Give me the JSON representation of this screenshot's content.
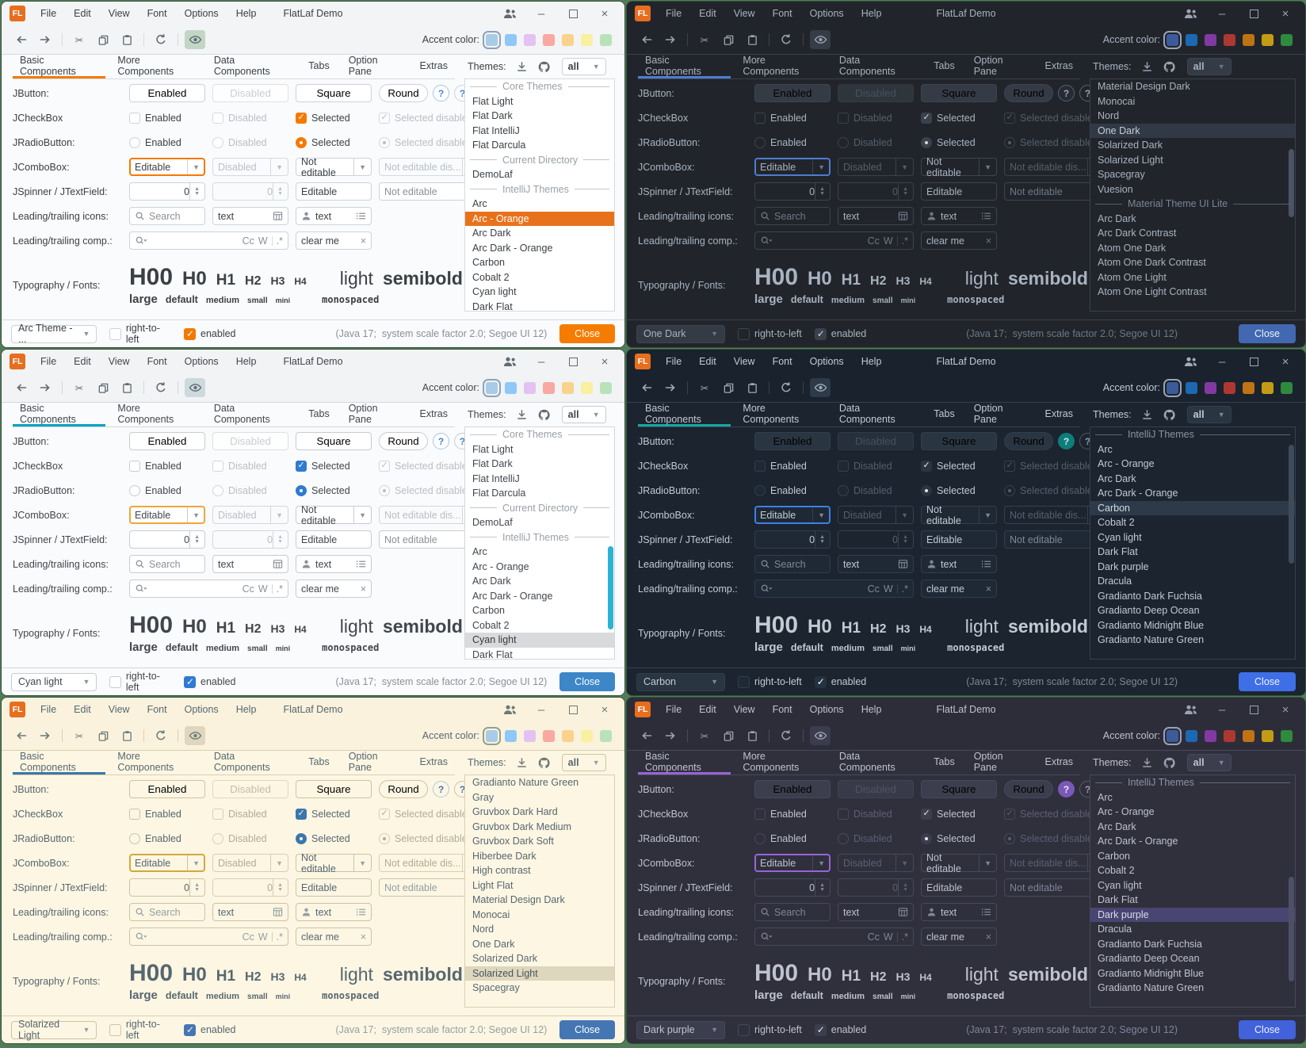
{
  "shared": {
    "logo": "FL",
    "window_title": "FlatLaf Demo",
    "menu": [
      "File",
      "Edit",
      "View",
      "Font",
      "Options",
      "Help"
    ],
    "accent_label": "Accent color:",
    "tabs": [
      "Basic Components",
      "More Components",
      "Data Components",
      "Tabs",
      "Option Pane",
      "Extras"
    ],
    "themes_label": "Themes:",
    "themes_filter": "all",
    "rows": {
      "jbutton_label": "JButton:",
      "btn_enabled": "Enabled",
      "btn_disabled": "Disabled",
      "btn_square": "Square",
      "btn_round": "Round",
      "help": "?",
      "jcheckbox_label": "JCheckBox",
      "cb_enabled": "Enabled",
      "cb_disabled": "Disabled",
      "cb_selected": "Selected",
      "cb_selected_disabled": "Selected disabled",
      "jradio_label": "JRadioButton:",
      "jcombo_label": "JComboBox:",
      "combo_editable": "Editable",
      "combo_disabled": "Disabled",
      "combo_not_editable": "Not editable",
      "combo_not_editable_dis": "Not editable dis...",
      "jspinner_label": "JSpinner / JTextField:",
      "spinner_value": "0",
      "tf_editable": "Editable",
      "tf_not_editable": "Not editable",
      "icons_label": "Leading/trailing icons:",
      "search_placeholder": "Search",
      "text_value": "text",
      "comp_label": "Leading/trailing comp.:",
      "match_case": "Cc",
      "whole_word": "W",
      "regex": ".*",
      "clear_value": "clear me",
      "clear_x": "×",
      "typo_label": "Typography / Fonts:",
      "h00": "H00",
      "h0": "H0",
      "h1": "H1",
      "h2": "H2",
      "h3": "H3",
      "h4": "H4",
      "light": "light",
      "semibold": "semibold",
      "size_large": "large",
      "size_default": "default",
      "size_medium": "medium",
      "size_small": "small",
      "size_mini": "mini",
      "monospaced": "monospaced"
    },
    "footer": {
      "rtl": "right-to-left",
      "enabled": "enabled",
      "info": "(Java 17;  system scale factor 2.0; Segoe UI 12)",
      "close": "Close"
    }
  },
  "panels": [
    {
      "footer_combo": "Arc Theme - ...",
      "colors": {
        "bg": "#fafbfc",
        "bar": "#f3f4f5",
        "text": "#3b4045",
        "muted": "#8a9199",
        "dis": "#b9bfc6",
        "bd": "#d5dadf",
        "fld": "#ffffff",
        "btn": "#ffffff",
        "btnb": "#ccd3da",
        "accent": "#f57900",
        "chk": "#f57900",
        "chkfg": "#ffffff",
        "focus": "#f57900",
        "lbg": "#ffffff",
        "sepc": "#9aa0a6",
        "selbg": "#e8721c",
        "selfg": "#ffffff",
        "clbg": "#f57c00",
        "clfg": "#ffffff",
        "fchk": "#f57900",
        "fchkfg": "#ffffff",
        "h1bg": "#ffffff",
        "h1fg": "#4a86d8",
        "h1b": "#a7c4e8",
        "h2fg": "#4a86d8",
        "h2b": "#ccd3da",
        "eye": "#c2d6c6",
        "sb": "transparent",
        "ring": "#8fa3b8",
        "icon": "#5f6a72"
      },
      "accents": [
        {
          "color": "#a8cbe8",
          "selected": true
        },
        {
          "color": "#8fc8f8"
        },
        {
          "color": "#e3c2f3"
        },
        {
          "color": "#f8a9a2"
        },
        {
          "color": "#f9d28d"
        },
        {
          "color": "#f9f0a0"
        },
        {
          "color": "#b9e2ba"
        }
      ],
      "theme_list": [
        {
          "type": "sep",
          "label": "Core Themes"
        },
        {
          "label": "Flat Light"
        },
        {
          "label": "Flat Dark"
        },
        {
          "label": "Flat IntelliJ"
        },
        {
          "label": "Flat Darcula"
        },
        {
          "type": "sep",
          "label": "Current Directory"
        },
        {
          "label": "DemoLaf"
        },
        {
          "type": "sep",
          "label": "IntelliJ Themes"
        },
        {
          "label": "Arc"
        },
        {
          "label": "Arc - Orange",
          "selected": true
        },
        {
          "label": "Arc Dark"
        },
        {
          "label": "Arc Dark - Orange"
        },
        {
          "label": "Carbon"
        },
        {
          "label": "Cobalt 2"
        },
        {
          "label": "Cyan light"
        },
        {
          "label": "Dark Flat"
        }
      ]
    },
    {
      "footer_combo": "One Dark",
      "colors": {
        "bg": "#21252b",
        "bar": "#21252b",
        "text": "#a9b2c0",
        "muted": "#6e7787",
        "dis": "#555e6b",
        "bd": "#3a414c",
        "fld": "#21252b",
        "btn": "#353b45",
        "btnb": "#3d4450",
        "accent": "#4f7cd1",
        "chk": "#3a414c",
        "chkfg": "#cfd6e0",
        "focus": "#4f7cd1",
        "lbg": "#21252b",
        "sepc": "#7a8495",
        "selbg": "#323946",
        "selfg": "#c6cdd9",
        "clbg": "#4268b1",
        "clfg": "#eef2f8",
        "fchk": "#3a414c",
        "fchkfg": "#d7dce4",
        "h1bg": "#262b33",
        "h1fg": "#9aa6b8",
        "h1b": "#58616f",
        "h2fg": "#9aa6b8",
        "h2b": "#58616f",
        "eye": "#363d47",
        "sb": "#4b5464",
        "ring": "#9aa4b4",
        "icon": "#9aa4b2"
      },
      "accents": [
        {
          "color": "#3d5b9b",
          "selected": true
        },
        {
          "color": "#1d68b2"
        },
        {
          "color": "#8239a2"
        },
        {
          "color": "#ad3832"
        },
        {
          "color": "#bf7315"
        },
        {
          "color": "#c29c14"
        },
        {
          "color": "#2f8a3e"
        }
      ],
      "theme_list": [
        {
          "label": "Material Design Dark"
        },
        {
          "label": "Monocai"
        },
        {
          "label": "Nord"
        },
        {
          "label": "One Dark",
          "selected": true
        },
        {
          "label": "Solarized Dark"
        },
        {
          "label": "Solarized Light"
        },
        {
          "label": "Spacegray"
        },
        {
          "label": "Vuesion"
        },
        {
          "type": "sep",
          "label": "Material Theme UI Lite"
        },
        {
          "label": "Arc Dark"
        },
        {
          "label": "Arc Dark Contrast"
        },
        {
          "label": "Atom One Dark"
        },
        {
          "label": "Atom One Dark Contrast"
        },
        {
          "label": "Atom One Light"
        },
        {
          "label": "Atom One Light Contrast"
        }
      ]
    },
    {
      "footer_combo": "Cyan light",
      "colors": {
        "bg": "#fafbfc",
        "bar": "#f2f3f4",
        "text": "#41464c",
        "muted": "#8b9299",
        "dis": "#b9bfc5",
        "bd": "#d2d7dc",
        "fld": "#ffffff",
        "btn": "#ffffff",
        "btnb": "#c6cdd3",
        "accent": "#00a3c6",
        "chk": "#2e7bd1",
        "chkfg": "#ffffff",
        "focus": "#f0a63a",
        "lbg": "#ffffff",
        "sepc": "#9aa0a6",
        "selbg": "#d9dadb",
        "selfg": "#35393e",
        "clbg": "#3d86c8",
        "clfg": "#ffffff",
        "fchk": "#2e7bd1",
        "fchkfg": "#ffffff",
        "h1bg": "#ffffff",
        "h1fg": "#3d86c8",
        "h1b": "#a7c4e8",
        "h2fg": "#3d86c8",
        "h2b": "#c6cdd3",
        "eye": "#ccd9dd",
        "sb": "#2bb3d4",
        "ring": "#8fa3b8",
        "icon": "#5f6a72"
      },
      "accents": [
        {
          "color": "#a8cbe8",
          "selected": true
        },
        {
          "color": "#8fc8f8"
        },
        {
          "color": "#e3c2f3"
        },
        {
          "color": "#f8a9a2"
        },
        {
          "color": "#f9d28d"
        },
        {
          "color": "#f9f0a0"
        },
        {
          "color": "#b9e2ba"
        }
      ],
      "theme_list": [
        {
          "type": "sep",
          "label": "Core Themes"
        },
        {
          "label": "Flat Light"
        },
        {
          "label": "Flat Dark"
        },
        {
          "label": "Flat IntelliJ"
        },
        {
          "label": "Flat Darcula"
        },
        {
          "type": "sep",
          "label": "Current Directory"
        },
        {
          "label": "DemoLaf"
        },
        {
          "type": "sep",
          "label": "IntelliJ Themes"
        },
        {
          "label": "Arc"
        },
        {
          "label": "Arc - Orange"
        },
        {
          "label": "Arc Dark"
        },
        {
          "label": "Arc Dark - Orange"
        },
        {
          "label": "Carbon"
        },
        {
          "label": "Cobalt 2"
        },
        {
          "label": "Cyan light",
          "selected": true
        },
        {
          "label": "Dark Flat"
        }
      ]
    },
    {
      "footer_combo": "Carbon",
      "colors": {
        "bg": "#1b242f",
        "bar": "#19222d",
        "text": "#c2cbd4",
        "muted": "#7d8895",
        "dis": "#55606c",
        "bd": "#37424f",
        "fld": "#1f2935",
        "btn": "#2a3542",
        "btnb": "#323e4c",
        "accent": "#17a8a2",
        "chk": "#2a3542",
        "chkfg": "#e4eaef",
        "focus": "#3e7fe8",
        "lbg": "#1b242f",
        "sepc": "#8a95a2",
        "selbg": "#2c3a49",
        "selfg": "#d4dbe2",
        "clbg": "#3e6fe6",
        "clfg": "#f0f4fa",
        "fchk": "#233240",
        "fchkfg": "#ffffff",
        "h1bg": "#0f7d7a",
        "h1fg": "#c8ecea",
        "h1b": "#0f7d7a",
        "h2fg": "#93a0ad",
        "h2b": "#4a5663",
        "eye": "#2c3a49",
        "sb": "#3d4b5b",
        "ring": "#9aa5b0",
        "icon": "#9fabb8"
      },
      "accents": [
        {
          "color": "#3d5b9b",
          "selected": true
        },
        {
          "color": "#1d68b2"
        },
        {
          "color": "#8239a2"
        },
        {
          "color": "#ad3832"
        },
        {
          "color": "#bf7315"
        },
        {
          "color": "#c29c14"
        },
        {
          "color": "#2f8a3e"
        }
      ],
      "theme_list": [
        {
          "type": "sep",
          "label": "IntelliJ Themes"
        },
        {
          "label": "Arc"
        },
        {
          "label": "Arc - Orange"
        },
        {
          "label": "Arc Dark"
        },
        {
          "label": "Arc Dark - Orange"
        },
        {
          "label": "Carbon",
          "selected": true
        },
        {
          "label": "Cobalt 2"
        },
        {
          "label": "Cyan light"
        },
        {
          "label": "Dark Flat"
        },
        {
          "label": "Dark purple"
        },
        {
          "label": "Dracula"
        },
        {
          "label": "Gradianto Dark Fuchsia"
        },
        {
          "label": "Gradianto Deep Ocean"
        },
        {
          "label": "Gradianto Midnight Blue"
        },
        {
          "label": "Gradianto Nature Green"
        }
      ]
    },
    {
      "footer_combo": "Solarized Light",
      "colors": {
        "bg": "#fdf6e3",
        "bar": "#faf2dd",
        "text": "#57676f",
        "muted": "#93a1a1",
        "dis": "#b3ac93",
        "bd": "#d9cfb0",
        "fld": "#fdf6e3",
        "btn": "#fdf6e3",
        "btnb": "#cdc3a2",
        "accent": "#3a77ad",
        "chk": "#3a77ad",
        "chkfg": "#fdf6e3",
        "focus": "#d1a93c",
        "lbg": "#fdf6e3",
        "sepc": "#93a1a1",
        "selbg": "#ded6bd",
        "selfg": "#45555e",
        "clbg": "#4576b4",
        "clfg": "#ffffff",
        "fchk": "#4576b4",
        "fchkfg": "#fdf6e3",
        "h1bg": "#fdf6e3",
        "h1fg": "#4576b4",
        "h1b": "#b4c8d8",
        "h2fg": "#4576b4",
        "h2b": "#cdc3a2",
        "eye": "#ded6bd",
        "sb": "transparent",
        "ring": "#97a089",
        "icon": "#6b7a74"
      },
      "accents": [
        {
          "color": "#a8cbe8",
          "selected": true
        },
        {
          "color": "#8fc8f8"
        },
        {
          "color": "#e3c2f3"
        },
        {
          "color": "#f8a9a2"
        },
        {
          "color": "#f9d28d"
        },
        {
          "color": "#f9f0a0"
        },
        {
          "color": "#b9e2ba"
        }
      ],
      "theme_list": [
        {
          "label": "Gradianto Nature Green"
        },
        {
          "label": "Gray"
        },
        {
          "label": "Gruvbox Dark Hard"
        },
        {
          "label": "Gruvbox Dark Medium"
        },
        {
          "label": "Gruvbox Dark Soft"
        },
        {
          "label": "Hiberbee Dark"
        },
        {
          "label": "High contrast"
        },
        {
          "label": "Light Flat"
        },
        {
          "label": "Material Design Dark"
        },
        {
          "label": "Monocai"
        },
        {
          "label": "Nord"
        },
        {
          "label": "One Dark"
        },
        {
          "label": "Solarized Dark"
        },
        {
          "label": "Solarized Light",
          "selected": true
        },
        {
          "label": "Spacegray"
        }
      ]
    },
    {
      "footer_combo": "Dark purple",
      "colors": {
        "bg": "#2f303c",
        "bar": "#2c2d38",
        "text": "#bfc2cf",
        "muted": "#80849a",
        "dis": "#5c5f74",
        "bd": "#474a5e",
        "fld": "#2f303c",
        "btn": "#3c3e4e",
        "btnb": "#464960",
        "accent": "#9a64d8",
        "chk": "#3c3e4e",
        "chkfg": "#e4e6f0",
        "focus": "#9a64d8",
        "lbg": "#2f303c",
        "sepc": "#8d91a6",
        "selbg": "#494573",
        "selfg": "#d9dbe8",
        "clbg": "#4162da",
        "clfg": "#f0f2fc",
        "fchk": "#3c3e4e",
        "fchkfg": "#e8eaf4",
        "h1bg": "#7a58b8",
        "h1fg": "#ece6f8",
        "h1b": "#7a58b8",
        "h2fg": "#989cb0",
        "h2b": "#565a70",
        "eye": "#3b3d4e",
        "sb": "#4d5066",
        "ring": "#9ba0b8",
        "icon": "#9da1b4"
      },
      "accents": [
        {
          "color": "#3d5b9b",
          "selected": true
        },
        {
          "color": "#1d68b2"
        },
        {
          "color": "#8239a2"
        },
        {
          "color": "#ad3832"
        },
        {
          "color": "#bf7315"
        },
        {
          "color": "#c29c14"
        },
        {
          "color": "#2f8a3e"
        }
      ],
      "theme_list": [
        {
          "type": "sep",
          "label": "IntelliJ Themes"
        },
        {
          "label": "Arc"
        },
        {
          "label": "Arc - Orange"
        },
        {
          "label": "Arc Dark"
        },
        {
          "label": "Arc Dark - Orange"
        },
        {
          "label": "Carbon"
        },
        {
          "label": "Cobalt 2"
        },
        {
          "label": "Cyan light"
        },
        {
          "label": "Dark Flat"
        },
        {
          "label": "Dark purple",
          "selected": true
        },
        {
          "label": "Dracula"
        },
        {
          "label": "Gradianto Dark Fuchsia"
        },
        {
          "label": "Gradianto Deep Ocean"
        },
        {
          "label": "Gradianto Midnight Blue"
        },
        {
          "label": "Gradianto Nature Green"
        }
      ]
    }
  ]
}
